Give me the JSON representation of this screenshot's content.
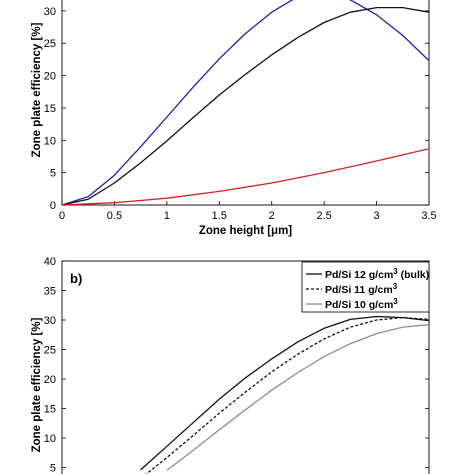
{
  "chart_data": [
    {
      "type": "line",
      "panel_label": "",
      "xlabel": "Zone height [μm]",
      "ylabel": "Zone plate efficiency [%]",
      "xlim": [
        0,
        3.5
      ],
      "ylim": [
        0,
        34
      ],
      "xticks": [
        0,
        0.5,
        1,
        1.5,
        2,
        2.5,
        3,
        3.5
      ],
      "xtick_labels": [
        "0",
        "0.5",
        "1",
        "1.5",
        "2",
        "2.5",
        "3",
        "3.5"
      ],
      "yticks": [
        0,
        5,
        10,
        15,
        20,
        25,
        30
      ],
      "ytick_labels": [
        "0",
        "5",
        "10",
        "15",
        "20",
        "25",
        "30"
      ],
      "grid": false,
      "series": [
        {
          "color": "#1f1fa8",
          "style": "solid",
          "x": [
            0,
            0.25,
            0.5,
            0.75,
            1.0,
            1.25,
            1.5,
            1.75,
            2.0,
            2.25,
            2.5,
            2.75,
            3.0,
            3.25,
            3.5
          ],
          "y": [
            0,
            1.3,
            4.6,
            9.0,
            13.6,
            18.2,
            22.6,
            26.5,
            29.8,
            32.2,
            32.9,
            31.7,
            29.4,
            26.2,
            22.3
          ]
        },
        {
          "color": "#111111",
          "style": "solid",
          "x": [
            0,
            0.25,
            0.5,
            0.75,
            1.0,
            1.25,
            1.5,
            1.75,
            2.0,
            2.25,
            2.5,
            2.75,
            3.0,
            3.25,
            3.5
          ],
          "y": [
            0,
            0.9,
            3.4,
            6.5,
            9.9,
            13.5,
            17.0,
            20.2,
            23.2,
            25.9,
            28.2,
            29.8,
            30.5,
            30.5,
            29.8
          ]
        },
        {
          "color": "#d22424",
          "style": "solid",
          "x": [
            0,
            0.5,
            1.0,
            1.5,
            2.0,
            2.5,
            3.0,
            3.5
          ],
          "y": [
            0,
            0.35,
            1.05,
            2.1,
            3.4,
            5.0,
            6.8,
            8.7
          ]
        }
      ]
    },
    {
      "type": "line",
      "panel_label": "b)",
      "xlabel": "",
      "ylabel": "Zone plate efficiency [%]",
      "xlim": [
        0,
        3.5
      ],
      "ylim": [
        0,
        40
      ],
      "yticks": [
        5,
        10,
        15,
        20,
        25,
        30,
        35,
        40
      ],
      "ytick_labels": [
        "5",
        "10",
        "15",
        "20",
        "25",
        "30",
        "35",
        "40"
      ],
      "grid": false,
      "legend_position": "top-right",
      "series": [
        {
          "name_main": "Pd/Si 12 g/cm",
          "name_sup": "3",
          "name_suffix": " (bulk)",
          "color": "#111111",
          "style": "solid",
          "x": [
            0.75,
            1.0,
            1.25,
            1.5,
            1.75,
            2.0,
            2.25,
            2.5,
            2.75,
            3.0,
            3.25,
            3.5
          ],
          "y": [
            4.6,
            8.6,
            12.6,
            16.6,
            20.2,
            23.4,
            26.3,
            28.6,
            30.1,
            30.6,
            30.4,
            29.9
          ]
        },
        {
          "name_main": "Pd/Si 11 g/cm",
          "name_sup": "3",
          "name_suffix": "",
          "color": "#111111",
          "style": "dashed",
          "x": [
            0.75,
            1.0,
            1.25,
            1.5,
            1.75,
            2.0,
            2.25,
            2.5,
            2.75,
            3.0,
            3.25,
            3.5
          ],
          "y": [
            3.1,
            6.7,
            10.4,
            14.2,
            17.8,
            21.2,
            24.2,
            26.8,
            28.8,
            30.0,
            30.4,
            30.1
          ]
        },
        {
          "name_main": "Pd/Si 10 g/cm",
          "name_sup": "3",
          "name_suffix": "",
          "color": "#8c8c8c",
          "style": "solid",
          "x": [
            1.0,
            1.25,
            1.5,
            1.75,
            2.0,
            2.25,
            2.5,
            2.75,
            3.0,
            3.25,
            3.5
          ],
          "y": [
            4.5,
            7.9,
            11.4,
            14.8,
            18.1,
            21.1,
            23.8,
            26.0,
            27.7,
            28.8,
            29.2
          ]
        }
      ]
    }
  ]
}
